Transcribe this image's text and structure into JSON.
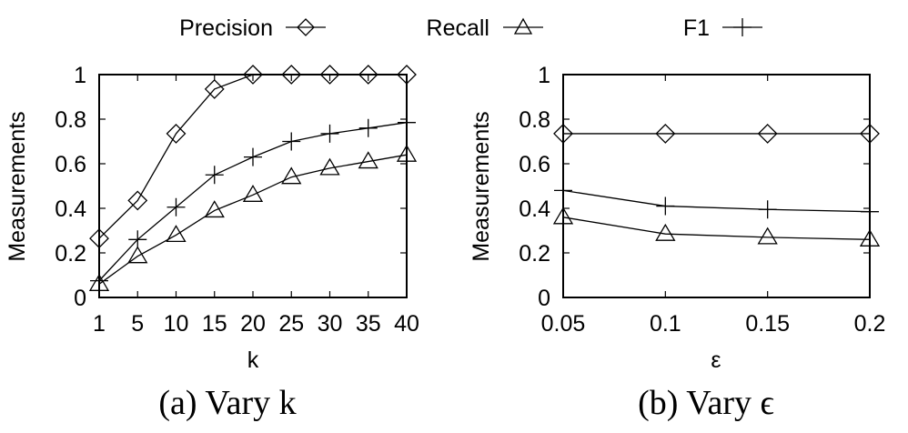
{
  "legend": {
    "entries": [
      {
        "label": "Precision",
        "marker": "diamond"
      },
      {
        "label": "Recall",
        "marker": "triangle"
      },
      {
        "label": "F1",
        "marker": "plus"
      }
    ],
    "placement": "top-center"
  },
  "chart_data": [
    {
      "type": "line",
      "title": "",
      "caption": "(a) Vary k",
      "xlabel": "k",
      "ylabel": "Measurements",
      "x_scale": "categorical",
      "categories": [
        "1",
        "5",
        "10",
        "15",
        "20",
        "25",
        "30",
        "35",
        "40"
      ],
      "ylim": [
        0,
        1
      ],
      "yticks": [
        0,
        0.2,
        0.4,
        0.6,
        0.8,
        1
      ],
      "ytick_labels": [
        "0",
        "0.2",
        "0.4",
        "0.6",
        "0.8",
        "1"
      ],
      "grid": false,
      "series": [
        {
          "name": "Precision",
          "marker": "diamond",
          "values": [
            0.265,
            0.435,
            0.735,
            0.935,
            1.0,
            1.0,
            1.0,
            1.0,
            1.0
          ]
        },
        {
          "name": "Recall",
          "marker": "triangle",
          "values": [
            0.06,
            0.185,
            0.28,
            0.39,
            0.46,
            0.54,
            0.58,
            0.61,
            0.64
          ]
        },
        {
          "name": "F1",
          "marker": "plus",
          "values": [
            0.075,
            0.26,
            0.405,
            0.55,
            0.63,
            0.7,
            0.735,
            0.76,
            0.785
          ]
        }
      ]
    },
    {
      "type": "line",
      "title": "",
      "caption": "(b) Vary ϵ",
      "xlabel": "ε",
      "ylabel": "Measurements",
      "x_scale": "linear",
      "x": [
        0.05,
        0.1,
        0.15,
        0.2
      ],
      "xlim": [
        0.05,
        0.2
      ],
      "xticks": [
        0.05,
        0.1,
        0.15,
        0.2
      ],
      "xtick_labels": [
        "0.05",
        "0.1",
        "0.15",
        "0.2"
      ],
      "ylim": [
        0,
        1
      ],
      "yticks": [
        0,
        0.2,
        0.4,
        0.6,
        0.8,
        1
      ],
      "ytick_labels": [
        "0",
        "0.2",
        "0.4",
        "0.6",
        "0.8",
        "1"
      ],
      "grid": false,
      "series": [
        {
          "name": "Precision",
          "marker": "diamond",
          "values": [
            0.735,
            0.735,
            0.735,
            0.735
          ]
        },
        {
          "name": "Recall",
          "marker": "triangle",
          "values": [
            0.36,
            0.285,
            0.27,
            0.26
          ]
        },
        {
          "name": "F1",
          "marker": "plus",
          "values": [
            0.48,
            0.41,
            0.395,
            0.385
          ]
        }
      ]
    }
  ]
}
